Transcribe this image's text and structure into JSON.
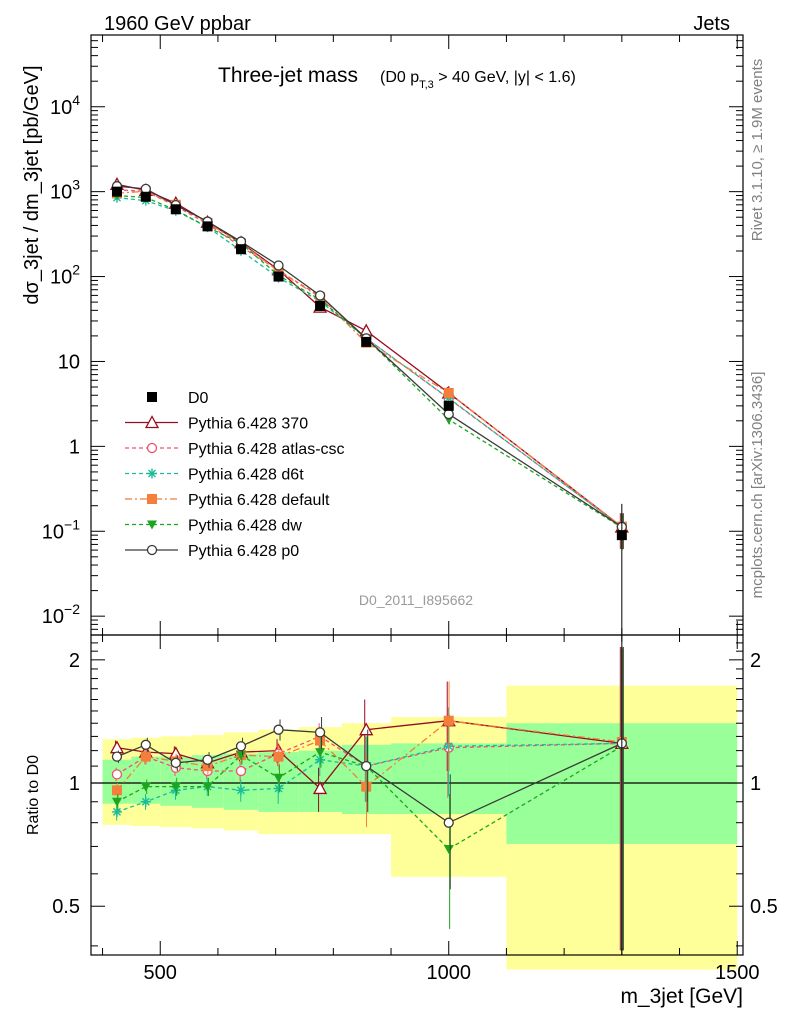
{
  "header": {
    "left": "1960 GeV ppbar",
    "right": "Jets"
  },
  "side_labels": {
    "rivet": "Rivet 3.1.10, ≥ 1.9M events",
    "mcplots": "mcplots.cern.ch [arXiv:1306.3436]"
  },
  "chart_data": {
    "type": "line",
    "title": "Three-jet mass",
    "subtitle_prefix": "(D0 p",
    "subtitle_sub": "T,3",
    "subtitle_suffix": " > 40 GeV, |y| < 1.6)",
    "ylabel": "dσ_3jet / dm_3jet [pb/GeV]",
    "xlabel": "m_3jet [GeV]",
    "ratio_ylabel": "Ratio to D0",
    "watermark": "D0_2011_I895662",
    "xlim": [
      380,
      1510
    ],
    "ylim": [
      0.006,
      70000
    ],
    "yscale": "log",
    "ratio_ylim": [
      0.38,
      2.3
    ],
    "ratio_yscale": "log",
    "x_ticks": [
      500,
      1000,
      1500
    ],
    "y_ticks": [
      {
        "value": 0.01,
        "base": "10",
        "exp": "−2"
      },
      {
        "value": 0.1,
        "base": "10",
        "exp": "−1"
      },
      {
        "value": 1,
        "base": "1",
        "exp": ""
      },
      {
        "value": 10,
        "base": "10",
        "exp": ""
      },
      {
        "value": 100,
        "base": "10",
        "exp": "2"
      },
      {
        "value": 1000,
        "base": "10",
        "exp": "3"
      },
      {
        "value": 10000,
        "base": "10",
        "exp": "4"
      }
    ],
    "ratio_ticks": [
      {
        "value": 0.5,
        "label": "0.5"
      },
      {
        "value": 1,
        "label": "1"
      },
      {
        "value": 2,
        "label": "2"
      }
    ],
    "bins": [
      [
        400,
        450
      ],
      [
        450,
        500
      ],
      [
        500,
        555
      ],
      [
        555,
        610
      ],
      [
        610,
        670
      ],
      [
        670,
        740
      ],
      [
        740,
        815
      ],
      [
        815,
        900
      ],
      [
        900,
        1100
      ],
      [
        1100,
        1500
      ]
    ],
    "data": {
      "name": "D0",
      "x": [
        425,
        475,
        527,
        582,
        640,
        705,
        777,
        857,
        1000,
        1300
      ],
      "y": [
        1000,
        870,
        620,
        390,
        210,
        100,
        45,
        17,
        3.0,
        0.09
      ]
    },
    "band_inner": [
      [
        0.89,
        1.14
      ],
      [
        0.89,
        1.16
      ],
      [
        0.88,
        1.16
      ],
      [
        0.87,
        1.17
      ],
      [
        0.86,
        1.18
      ],
      [
        0.85,
        1.19
      ],
      [
        0.85,
        1.2
      ],
      [
        0.84,
        1.24
      ],
      [
        0.84,
        1.25
      ],
      [
        0.71,
        1.4
      ]
    ],
    "band_outer": [
      [
        0.79,
        1.28
      ],
      [
        0.785,
        1.29
      ],
      [
        0.78,
        1.3
      ],
      [
        0.775,
        1.31
      ],
      [
        0.765,
        1.33
      ],
      [
        0.75,
        1.35
      ],
      [
        0.75,
        1.37
      ],
      [
        0.75,
        1.4
      ],
      [
        0.59,
        1.45
      ],
      [
        0.35,
        1.73
      ]
    ],
    "series": [
      {
        "name": "Pythia 6.428 370",
        "color": "#9b0a1e",
        "marker": "triangle-open",
        "dash": "",
        "x": [
          425,
          475,
          527,
          582,
          640,
          705,
          777,
          857,
          1000,
          1300
        ],
        "ratio": [
          1.22,
          1.19,
          1.18,
          1.12,
          1.19,
          1.2,
          0.97,
          1.35,
          1.42,
          1.25
        ],
        "err": [
          0.05,
          0.05,
          0.05,
          0.05,
          0.06,
          0.08,
          0.12,
          0.25,
          0.35,
          0.9
        ]
      },
      {
        "name": "Pythia 6.428 atlas-csc",
        "color": "#f0506e",
        "marker": "circle-open",
        "dash": "4,3",
        "x": [
          425,
          475,
          527,
          582,
          640,
          705,
          777,
          857,
          1000,
          1300
        ],
        "ratio": [
          1.05,
          1.16,
          1.09,
          1.07,
          1.07,
          1.18,
          1.3,
          1.1,
          1.22,
          1.25
        ],
        "err": [
          0.04,
          0.05,
          0.05,
          0.05,
          0.06,
          0.08,
          0.1,
          0.2,
          0.3,
          0.9
        ]
      },
      {
        "name": "Pythia 6.428 d6t",
        "color": "#1abc9c",
        "marker": "asterisk",
        "dash": "4,3",
        "x": [
          425,
          475,
          527,
          582,
          640,
          705,
          777,
          857,
          1000,
          1300
        ],
        "ratio": [
          0.85,
          0.9,
          0.96,
          0.98,
          0.96,
          0.97,
          1.14,
          1.1,
          1.23,
          1.25
        ],
        "err": [
          0.04,
          0.04,
          0.05,
          0.05,
          0.06,
          0.08,
          0.1,
          0.2,
          0.3,
          0.9
        ]
      },
      {
        "name": "Pythia 6.428 default",
        "color": "#f47e3c",
        "marker": "square-filled",
        "dash": "7,3,2,3",
        "x": [
          425,
          475,
          527,
          582,
          640,
          705,
          777,
          857,
          1000,
          1300
        ],
        "ratio": [
          0.96,
          1.16,
          1.13,
          1.1,
          1.17,
          1.16,
          1.27,
          0.98,
          1.42,
          1.26
        ],
        "err": [
          0.04,
          0.05,
          0.05,
          0.05,
          0.06,
          0.08,
          0.1,
          0.2,
          0.35,
          0.9
        ]
      },
      {
        "name": "Pythia 6.428 dw",
        "color": "#1ea51e",
        "marker": "triangle-down-filled",
        "dash": "4,3",
        "x": [
          425,
          475,
          527,
          582,
          640,
          705,
          777,
          857,
          1000,
          1300
        ],
        "ratio": [
          0.9,
          0.98,
          0.98,
          0.98,
          1.17,
          1.03,
          1.19,
          1.1,
          0.69,
          1.23
        ],
        "err": [
          0.04,
          0.04,
          0.05,
          0.05,
          0.06,
          0.08,
          0.1,
          0.2,
          0.25,
          0.9
        ]
      },
      {
        "name": "Pythia 6.428 p0",
        "color": "#3a3a3a",
        "marker": "circle-open",
        "dash": "",
        "x": [
          425,
          475,
          527,
          582,
          640,
          705,
          777,
          857,
          1000,
          1300
        ],
        "ratio": [
          1.16,
          1.24,
          1.12,
          1.14,
          1.23,
          1.35,
          1.33,
          1.1,
          0.8,
          1.25
        ],
        "err": [
          0.04,
          0.05,
          0.05,
          0.05,
          0.06,
          0.08,
          0.12,
          0.25,
          0.25,
          0.9
        ]
      }
    ]
  }
}
